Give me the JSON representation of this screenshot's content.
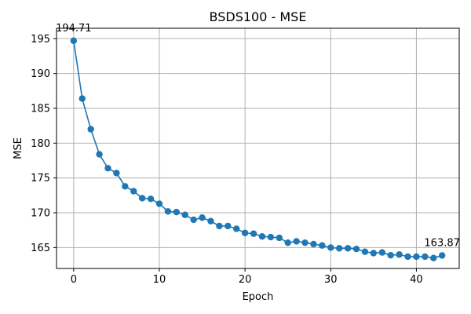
{
  "chart_data": {
    "type": "line",
    "title": "BSDS100 - MSE",
    "xlabel": "Epoch",
    "ylabel": "MSE",
    "xlim": [
      -2,
      45
    ],
    "ylim": [
      162.0,
      196.5
    ],
    "xticks": [
      0,
      10,
      20,
      30,
      40
    ],
    "yticks": [
      165,
      170,
      175,
      180,
      185,
      190,
      195
    ],
    "grid": true,
    "color": "#1f77b4",
    "series": [
      {
        "x": [
          0,
          1,
          2,
          3,
          4,
          5,
          6,
          7,
          8,
          9,
          10,
          11,
          12,
          13,
          14,
          15,
          16,
          17,
          18,
          19,
          20,
          21,
          22,
          23,
          24,
          25,
          26,
          27,
          28,
          29,
          30,
          31,
          32,
          33,
          34,
          35,
          36,
          37,
          38,
          39,
          40,
          41,
          42,
          43
        ],
        "values": [
          194.71,
          186.4,
          182.0,
          178.4,
          176.4,
          175.7,
          173.8,
          173.1,
          172.1,
          172.0,
          171.3,
          170.2,
          170.1,
          169.7,
          169.0,
          169.3,
          168.8,
          168.1,
          168.1,
          167.7,
          167.1,
          167.0,
          166.6,
          166.5,
          166.4,
          165.7,
          165.9,
          165.7,
          165.5,
          165.3,
          165.0,
          164.9,
          164.9,
          164.8,
          164.4,
          164.2,
          164.3,
          163.9,
          164.0,
          163.7,
          163.7,
          163.7,
          163.5,
          163.87
        ]
      }
    ],
    "annotations": [
      {
        "text": "194.71",
        "x": 0,
        "y": 194.71
      },
      {
        "text": "163.87",
        "x": 43,
        "y": 163.87
      }
    ]
  }
}
